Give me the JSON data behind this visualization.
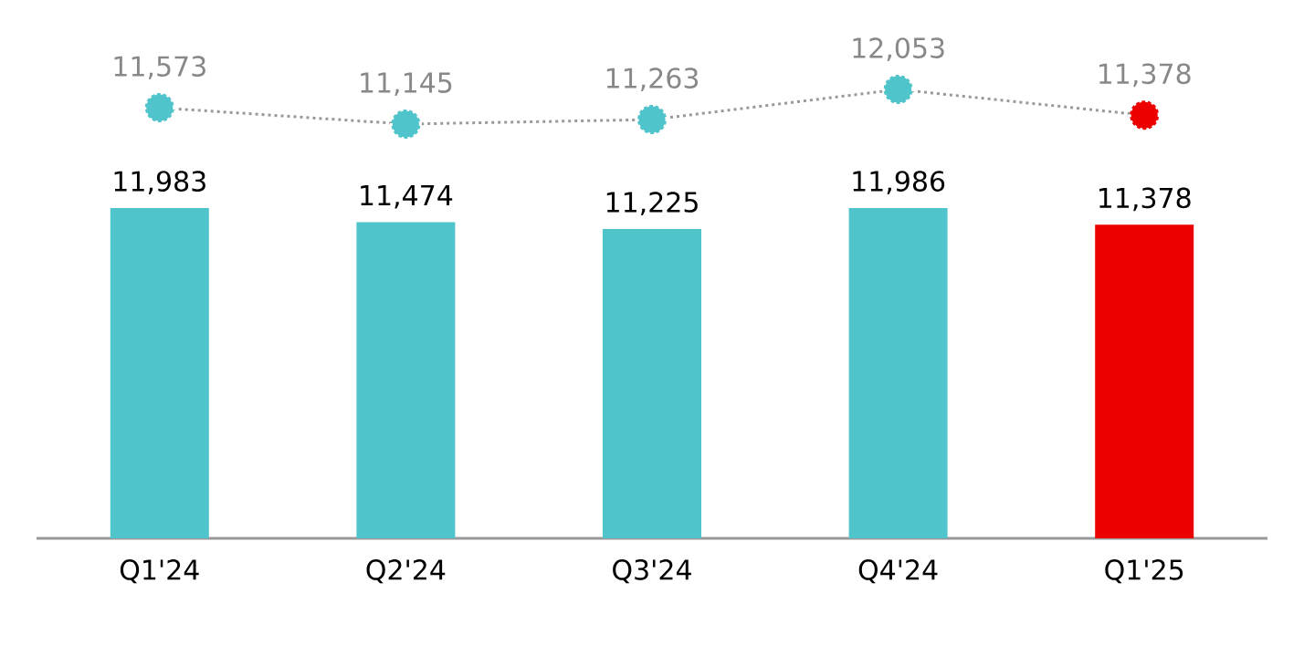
{
  "chart_data": [
    {
      "type": "line",
      "categories": [
        null,
        null,
        null,
        null,
        null
      ],
      "series": [
        {
          "color": "#999999",
          "colors": [
            "#4fc4ca",
            "#4fc4ca",
            "#4fc4ca",
            "#4fc4ca",
            "#ec0000"
          ],
          "values": [
            11573,
            11145,
            11263,
            12053,
            11378
          ],
          "value_labels": [
            "11,573",
            "11,145",
            "11,263",
            "12,053",
            "11,378"
          ]
        }
      ],
      "marker": "circle",
      "line_style": "dotted",
      "tick_labels": false
    },
    {
      "type": "bar",
      "categories": [
        "Q1'24",
        "Q2'24",
        "Q3'24",
        "Q4'24",
        "Q1'25"
      ],
      "series": [
        {
          "colors": [
            "#4fc4ca",
            "#4fc4ca",
            "#4fc4ca",
            "#4fc4ca",
            "#ec0000"
          ],
          "values": [
            11983,
            11474,
            11225,
            11986,
            11378
          ],
          "value_labels": [
            "11,983",
            "11,474",
            "11,225",
            "11,986",
            "11,378"
          ]
        }
      ],
      "tick_labels": "x"
    }
  ]
}
